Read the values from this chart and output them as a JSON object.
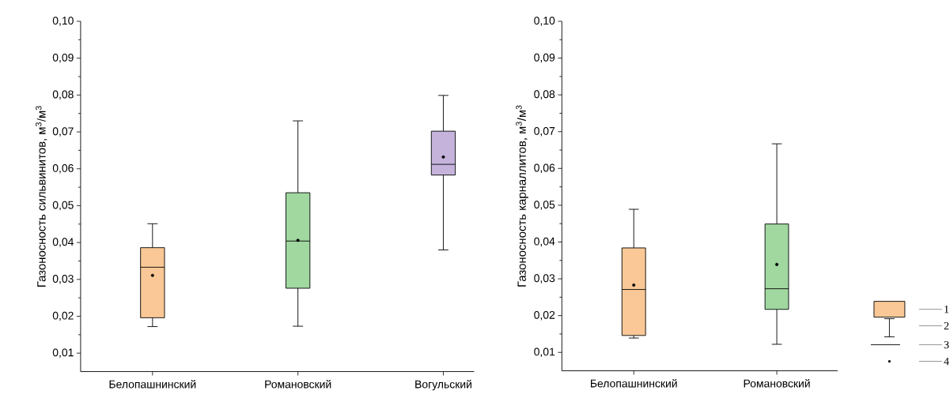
{
  "chart_data": [
    {
      "type": "box",
      "ylabel": "Газоносность сильвинитов, м$^{3}$/м$^{3}$",
      "categories": [
        "Белопашнинский",
        "Романовский",
        "Вогульский"
      ],
      "colors": [
        "#f9c896",
        "#a0d8a0",
        "#c5b3dc"
      ],
      "boxes": [
        {
          "low": 0.0172,
          "q1": 0.0196,
          "median": 0.0333,
          "q3": 0.0386,
          "high": 0.0451,
          "mean": 0.0311
        },
        {
          "low": 0.0173,
          "q1": 0.0276,
          "median": 0.0404,
          "q3": 0.0535,
          "high": 0.073,
          "mean": 0.0406
        },
        {
          "low": 0.038,
          "q1": 0.0583,
          "median": 0.0612,
          "q3": 0.0702,
          "high": 0.0799,
          "mean": 0.0632
        }
      ],
      "ylim": [
        0.005,
        0.1
      ],
      "yticks": [
        {
          "value": 0.01,
          "label": "0,01"
        },
        {
          "value": 0.02,
          "label": "0,02"
        },
        {
          "value": 0.03,
          "label": "0,03"
        },
        {
          "value": 0.04,
          "label": "0,04"
        },
        {
          "value": 0.05,
          "label": "0,05"
        },
        {
          "value": 0.06,
          "label": "0,06"
        },
        {
          "value": 0.07,
          "label": "0,07"
        },
        {
          "value": 0.08,
          "label": "0,08"
        },
        {
          "value": 0.09,
          "label": "0,09"
        },
        {
          "value": 0.1,
          "label": "0,10"
        }
      ]
    },
    {
      "type": "box",
      "ylabel": "Газоносность карналлитов, м$^{3}$/м$^{3}$",
      "categories": [
        "Белопашнинский",
        "Романовский"
      ],
      "colors": [
        "#f9c896",
        "#a0d8a0"
      ],
      "boxes": [
        {
          "low": 0.0139,
          "q1": 0.0146,
          "median": 0.0271,
          "q3": 0.0384,
          "high": 0.0489,
          "mean": 0.0283
        },
        {
          "low": 0.0122,
          "q1": 0.0217,
          "median": 0.0273,
          "q3": 0.0449,
          "high": 0.0667,
          "mean": 0.0339
        }
      ],
      "ylim": [
        0.005,
        0.1
      ],
      "yticks": [
        {
          "value": 0.01,
          "label": "0,01"
        },
        {
          "value": 0.02,
          "label": "0,02"
        },
        {
          "value": 0.03,
          "label": "0,03"
        },
        {
          "value": 0.04,
          "label": "0,04"
        },
        {
          "value": 0.05,
          "label": "0,05"
        },
        {
          "value": 0.06,
          "label": "0,06"
        },
        {
          "value": 0.07,
          "label": "0,07"
        },
        {
          "value": 0.08,
          "label": "0,08"
        },
        {
          "value": 0.09,
          "label": "0,09"
        },
        {
          "value": 0.1,
          "label": "0,10"
        }
      ],
      "annotations": [
        "1",
        "2",
        "3",
        "4"
      ]
    }
  ]
}
